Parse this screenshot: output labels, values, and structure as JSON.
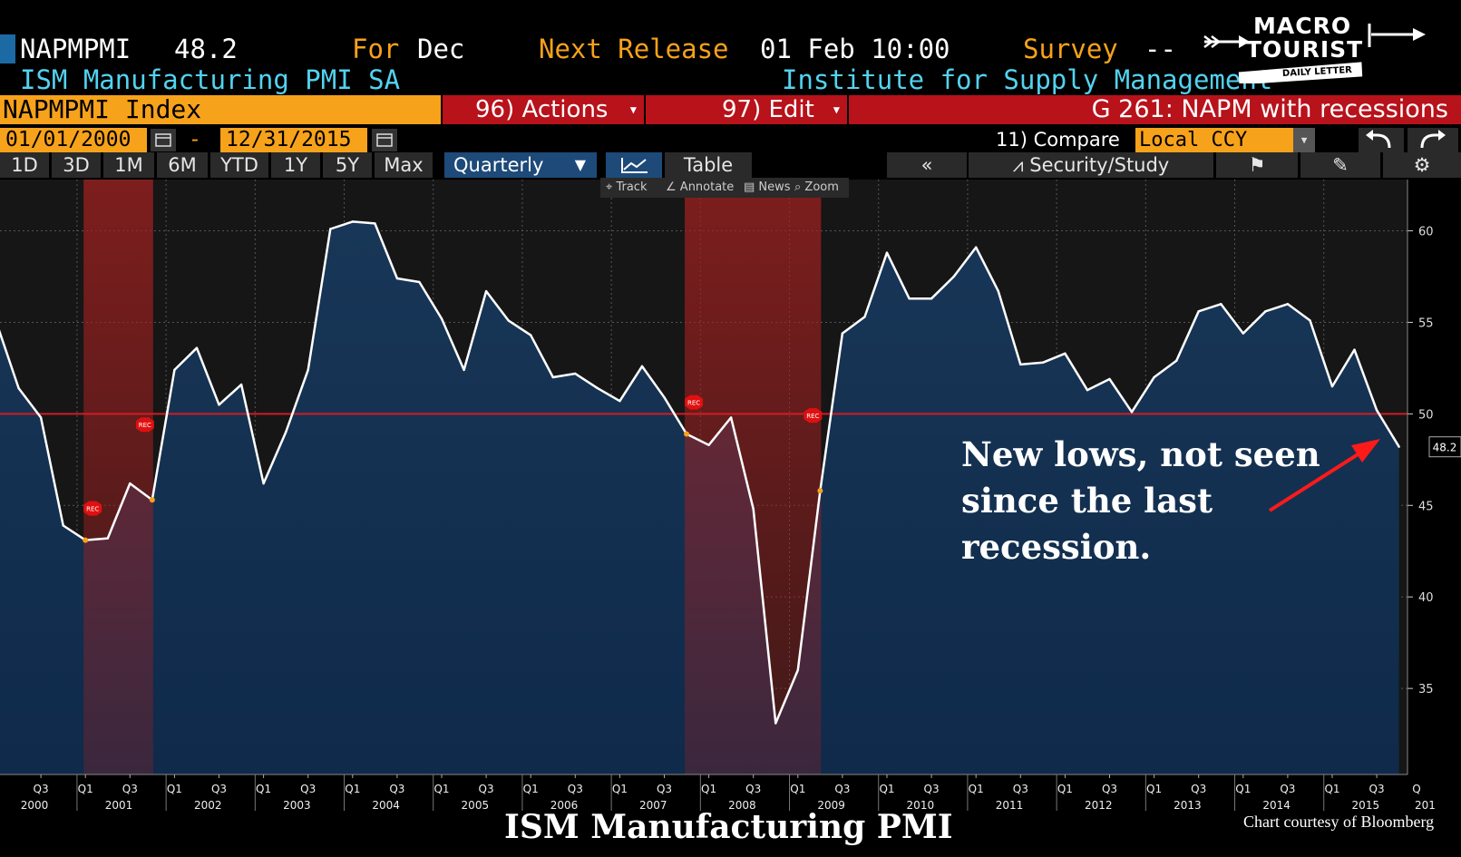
{
  "header": {
    "ticker": "NAPMPMI",
    "value": "48.2",
    "for_label": "For",
    "for_value": "Dec",
    "next_release_label": "Next Release",
    "next_release_value": "01 Feb 10:00",
    "survey_label": "Survey",
    "survey_value": "--",
    "subtitle": "ISM Manufacturing PMI SA",
    "source": "Institute for Supply Management"
  },
  "logo": {
    "line1": "MACRO",
    "line2": "TOURIST",
    "banner": "DAILY LETTER"
  },
  "toolbar": {
    "security": "NAPMPMI Index",
    "actions": "96) Actions",
    "edit": "97) Edit",
    "chart_name": "G 261: NAPM with recessions",
    "start_date": "01/01/2000",
    "date_sep": "-",
    "end_date": "12/31/2015",
    "compare": "11) Compare",
    "currency": "Local CCY"
  },
  "periods": [
    "1D",
    "3D",
    "1M",
    "6M",
    "YTD",
    "1Y",
    "5Y",
    "Max"
  ],
  "frequency": "Quarterly",
  "tabs": {
    "table": "Table",
    "security_study": "Security/Study"
  },
  "chart_tools": [
    "Track",
    "Annotate",
    "News",
    "Zoom"
  ],
  "colors": {
    "line": "#ffffff",
    "fill": "#16304f",
    "recession": "#b02828",
    "threshold": "#d01c24",
    "orange": "#f7a21b",
    "cyan": "#52d3f0"
  },
  "icons": [
    "calendar-icon",
    "chevron-down-icon",
    "line-chart-icon",
    "double-chevron-left-icon",
    "study-icon",
    "flag-icon",
    "edit-icon",
    "gear-icon",
    "undo-icon",
    "redo-icon"
  ],
  "chart_data": {
    "type": "area",
    "title": "ISM Manufacturing PMI",
    "credit": "Chart courtesy of Bloomberg",
    "ylim": [
      30.3,
      62.8
    ],
    "yticks": [
      35,
      40,
      45,
      50,
      55,
      60
    ],
    "threshold": 50,
    "last_value": "48.2",
    "x": [
      "2000Q1",
      "2000Q2",
      "2000Q3",
      "2000Q4",
      "2001Q1",
      "2001Q2",
      "2001Q3",
      "2001Q4",
      "2002Q1",
      "2002Q2",
      "2002Q3",
      "2002Q4",
      "2003Q1",
      "2003Q2",
      "2003Q3",
      "2003Q4",
      "2004Q1",
      "2004Q2",
      "2004Q3",
      "2004Q4",
      "2005Q1",
      "2005Q2",
      "2005Q3",
      "2005Q4",
      "2006Q1",
      "2006Q2",
      "2006Q3",
      "2006Q4",
      "2007Q1",
      "2007Q2",
      "2007Q3",
      "2007Q4",
      "2008Q1",
      "2008Q2",
      "2008Q3",
      "2008Q4",
      "2009Q1",
      "2009Q2",
      "2009Q3",
      "2009Q4",
      "2010Q1",
      "2010Q2",
      "2010Q3",
      "2010Q4",
      "2011Q1",
      "2011Q2",
      "2011Q3",
      "2011Q4",
      "2012Q1",
      "2012Q2",
      "2012Q3",
      "2012Q4",
      "2013Q1",
      "2013Q2",
      "2013Q3",
      "2013Q4",
      "2014Q1",
      "2014Q2",
      "2014Q3",
      "2014Q4",
      "2015Q1",
      "2015Q2",
      "2015Q3",
      "2015Q4"
    ],
    "values": [
      55.0,
      51.4,
      49.8,
      43.9,
      43.1,
      43.2,
      46.2,
      45.3,
      52.4,
      53.6,
      50.5,
      51.6,
      46.2,
      49.0,
      52.4,
      60.1,
      60.5,
      60.4,
      57.4,
      57.2,
      55.2,
      52.4,
      56.7,
      55.1,
      54.3,
      52.0,
      52.2,
      51.4,
      50.7,
      52.6,
      50.9,
      48.9,
      48.3,
      49.8,
      44.8,
      33.1,
      36.0,
      45.8,
      54.4,
      55.3,
      58.8,
      56.3,
      56.3,
      57.5,
      59.1,
      56.7,
      52.7,
      52.8,
      53.3,
      51.3,
      51.9,
      50.1,
      52.0,
      52.9,
      55.6,
      56.0,
      54.4,
      55.6,
      56.0,
      55.1,
      51.5,
      53.5,
      50.2,
      48.2
    ],
    "recessions": [
      [
        "2001Q1",
        "2001Q4"
      ],
      [
        "2007Q4",
        "2009Q2"
      ]
    ],
    "rec_marker": "REC",
    "x_quarter_labels": [
      "Q1",
      "Q3"
    ],
    "x_years": [
      "2000",
      "2001",
      "2002",
      "2003",
      "2004",
      "2005",
      "2006",
      "2007",
      "2008",
      "2009",
      "2010",
      "2011",
      "2012",
      "2013",
      "2014",
      "2015"
    ],
    "x_year_edge": "201",
    "x_quarter_edge": "Q",
    "annotation": [
      "New lows, not seen",
      "since the last",
      "recession."
    ]
  }
}
